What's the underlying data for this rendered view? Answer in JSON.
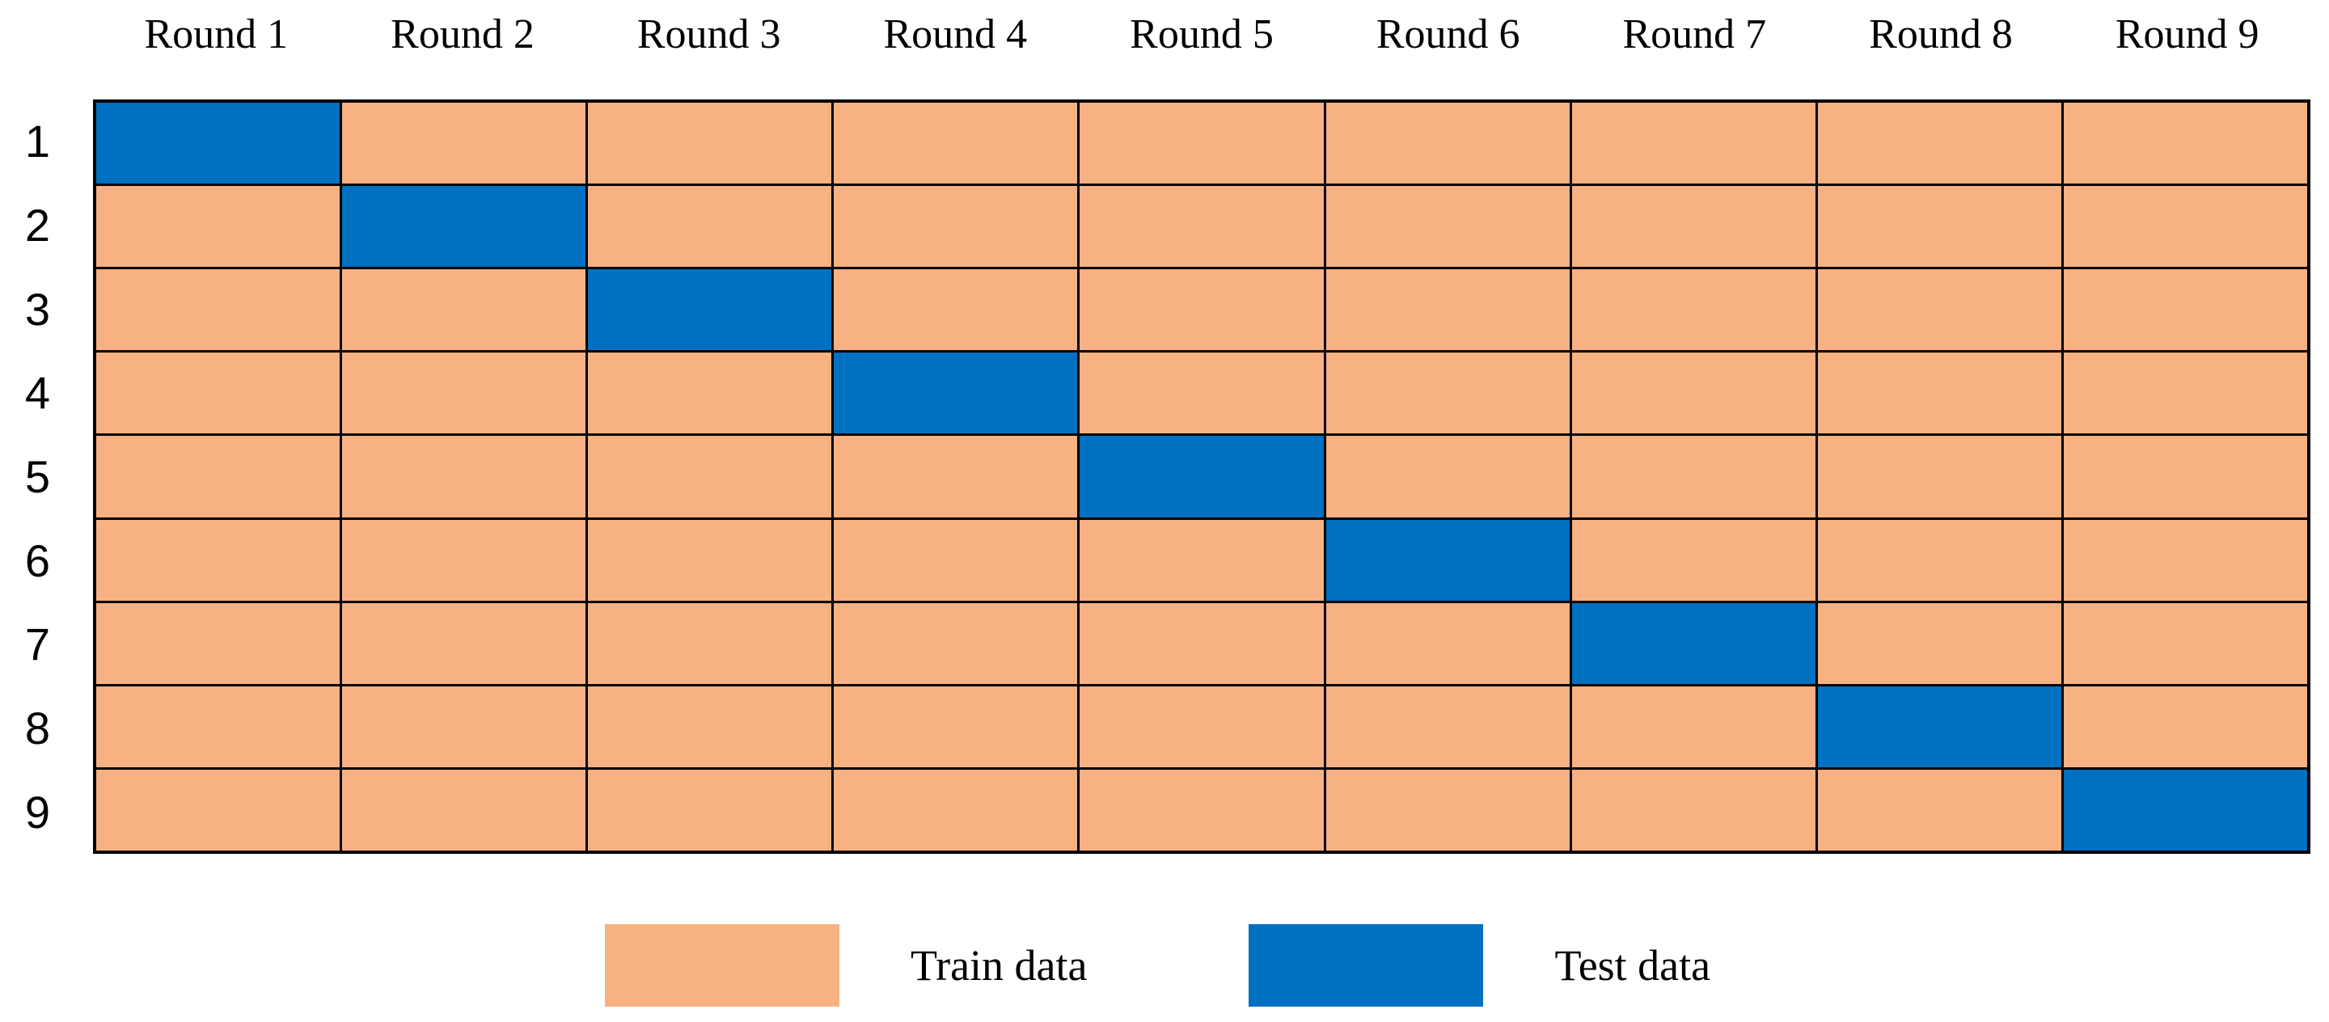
{
  "figure": {
    "type": "kfold-cross-validation-grid",
    "columns": [
      "Round 1",
      "Round 2",
      "Round 3",
      "Round 4",
      "Round 5",
      "Round 6",
      "Round 7",
      "Round 8",
      "Round 9"
    ],
    "rows": [
      "1",
      "2",
      "3",
      "4",
      "5",
      "6",
      "7",
      "8",
      "9"
    ],
    "matrix": [
      [
        "test",
        "train",
        "train",
        "train",
        "train",
        "train",
        "train",
        "train",
        "train"
      ],
      [
        "train",
        "test",
        "train",
        "train",
        "train",
        "train",
        "train",
        "train",
        "train"
      ],
      [
        "train",
        "train",
        "test",
        "train",
        "train",
        "train",
        "train",
        "train",
        "train"
      ],
      [
        "train",
        "train",
        "train",
        "test",
        "train",
        "train",
        "train",
        "train",
        "train"
      ],
      [
        "train",
        "train",
        "train",
        "train",
        "test",
        "train",
        "train",
        "train",
        "train"
      ],
      [
        "train",
        "train",
        "train",
        "train",
        "train",
        "test",
        "train",
        "train",
        "train"
      ],
      [
        "train",
        "train",
        "train",
        "train",
        "train",
        "train",
        "test",
        "train",
        "train"
      ],
      [
        "train",
        "train",
        "train",
        "train",
        "train",
        "train",
        "train",
        "test",
        "train"
      ],
      [
        "train",
        "train",
        "train",
        "train",
        "train",
        "train",
        "train",
        "train",
        "test"
      ]
    ]
  },
  "legend": {
    "items": [
      {
        "label": "Train data",
        "type": "train"
      },
      {
        "label": "Test data",
        "type": "test"
      }
    ]
  },
  "colors": {
    "train": "#F7B183",
    "test": "#0070C0",
    "grid_line": "#000000",
    "background": "#FFFFFF",
    "text": "#000000"
  }
}
